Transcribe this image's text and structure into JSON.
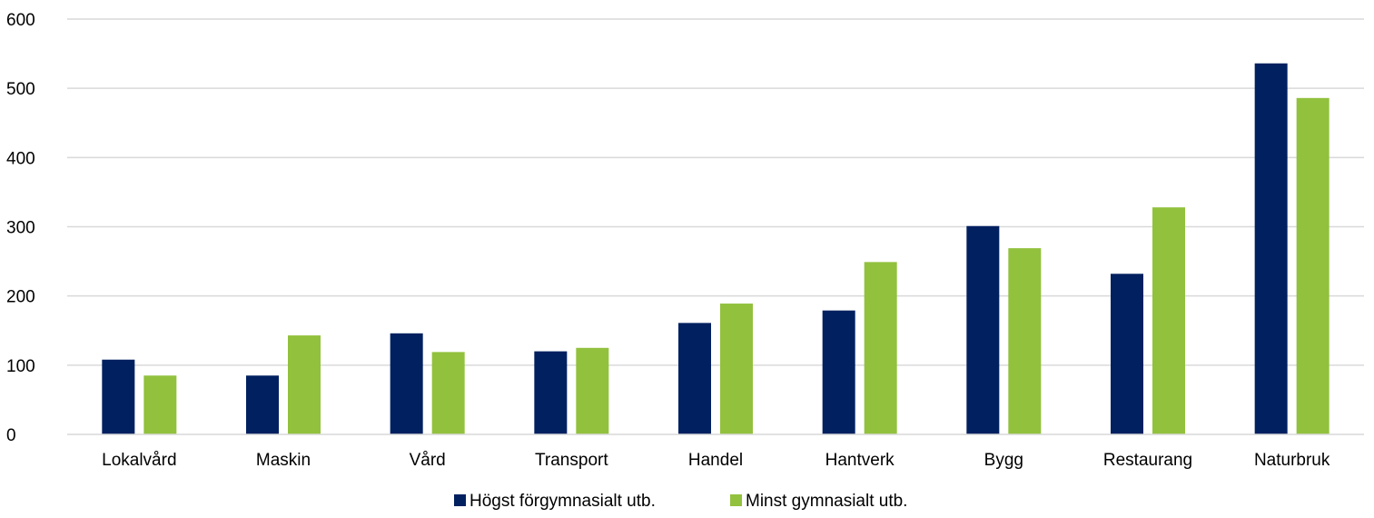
{
  "chart_data": {
    "type": "bar",
    "categories": [
      "Lokalvård",
      "Maskin",
      "Vård",
      "Transport",
      "Handel",
      "Hantverk",
      "Bygg",
      "Restaurang",
      "Naturbruk"
    ],
    "series": [
      {
        "name": "Högst förgymnasialt utb.",
        "color": "#002060",
        "values": [
          108,
          85,
          146,
          120,
          161,
          179,
          301,
          232,
          536
        ]
      },
      {
        "name": "Minst gymnasialt utb.",
        "color": "#92C13E",
        "values": [
          85,
          143,
          119,
          125,
          189,
          249,
          269,
          328,
          486
        ]
      }
    ],
    "ylim": [
      0,
      600
    ],
    "yticks": [
      "0",
      "100",
      "200",
      "300",
      "400",
      "500",
      "600"
    ],
    "grid": true,
    "legend": "bottom-center",
    "gridline_color": "#D9D9D9"
  }
}
